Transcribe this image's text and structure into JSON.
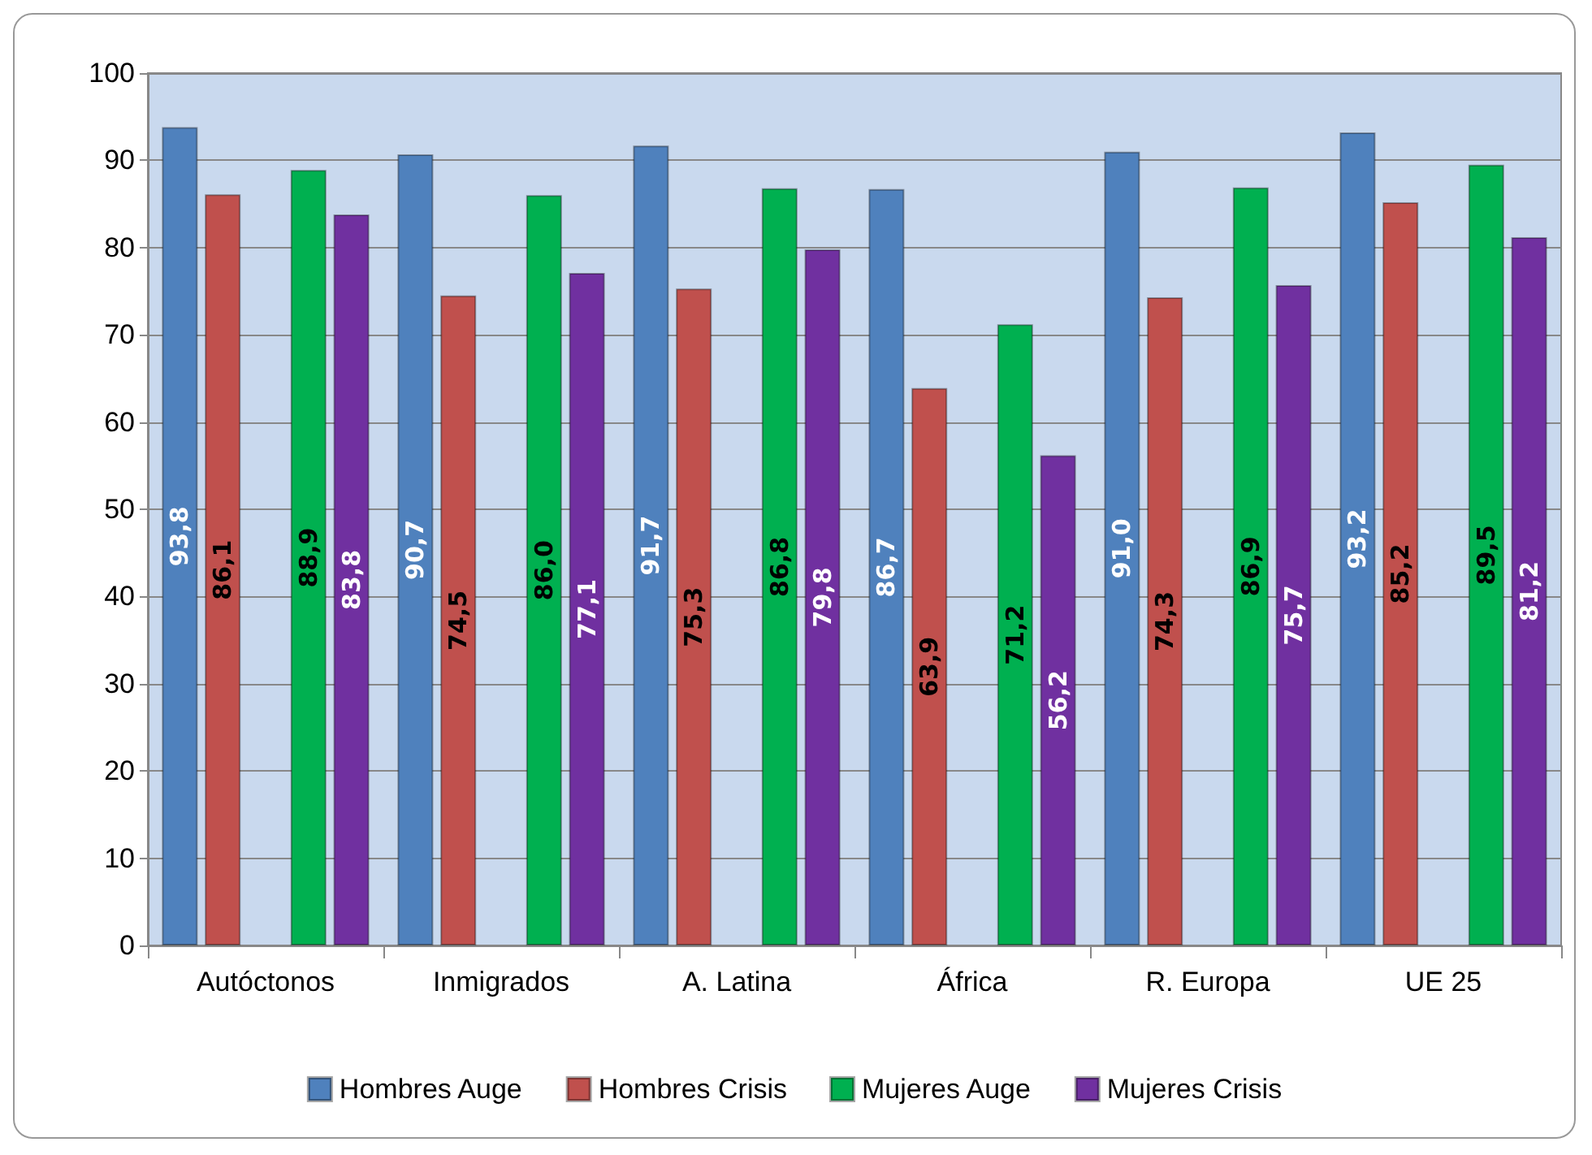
{
  "chart_data": {
    "type": "bar",
    "categories": [
      "Autóctonos",
      "Inmigrados",
      "A. Latina",
      "África",
      "R. Europa",
      "UE 25"
    ],
    "series": [
      {
        "name": "Hombres Auge",
        "color": "#4f81bd",
        "values": [
          93.8,
          90.7,
          91.7,
          86.7,
          91.0,
          93.2
        ],
        "value_labels": [
          "93,8",
          "90,7",
          "91,7",
          "86,7",
          "91,0",
          "93,2"
        ]
      },
      {
        "name": "Hombres Crisis",
        "color": "#c0504d",
        "values": [
          86.1,
          74.5,
          75.3,
          63.9,
          74.3,
          85.2
        ],
        "value_labels": [
          "86,1",
          "74,5",
          "75,3",
          "63,9",
          "74,3",
          "85,2"
        ]
      },
      {
        "color": "#9bbb59",
        "values": [
          null,
          null,
          null,
          null,
          null,
          null
        ]
      },
      {
        "name": "Mujeres Auge",
        "color": "#00b050",
        "values": [
          88.9,
          86.0,
          86.8,
          71.2,
          86.9,
          89.5
        ],
        "value_labels": [
          "88,9",
          "86,0",
          "86,8",
          "71,2",
          "86,9",
          "89,5"
        ]
      },
      {
        "name": "Mujeres Crisis",
        "color": "#7030a0",
        "values": [
          83.8,
          77.1,
          79.8,
          56.2,
          75.7,
          81.2
        ],
        "value_labels": [
          "83,8",
          "77,1",
          "79,8",
          "56,2",
          "75,7",
          "81,2"
        ]
      }
    ],
    "ylim": [
      0,
      100
    ],
    "yticks": [
      0,
      10,
      20,
      30,
      40,
      50,
      60,
      70,
      80,
      90,
      100
    ],
    "grid": "y",
    "legend": "bottom"
  }
}
